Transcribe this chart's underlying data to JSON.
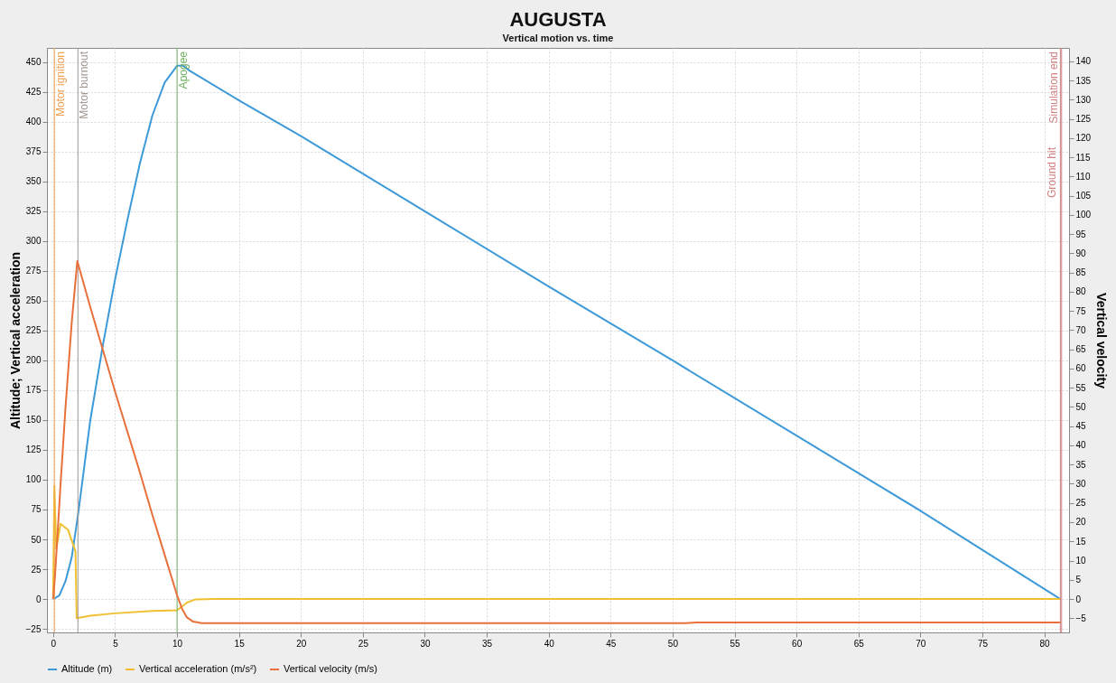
{
  "chart_data": {
    "type": "line",
    "title": "AUGUSTA",
    "subtitle": "Vertical motion vs. time",
    "ylabel": "Altitude; Vertical acceleration",
    "y2label": "Vertical velocity",
    "xlim": [
      -0.5,
      82
    ],
    "xticks": [
      0,
      5,
      10,
      15,
      20,
      25,
      30,
      35,
      40,
      45,
      50,
      55,
      60,
      65,
      70,
      75,
      80
    ],
    "ylim": [
      -28,
      462
    ],
    "yticks": [
      -25,
      0,
      25,
      50,
      75,
      100,
      125,
      150,
      175,
      200,
      225,
      250,
      275,
      300,
      325,
      350,
      375,
      400,
      425,
      450
    ],
    "y2lim": [
      -8.7,
      143.5
    ],
    "y2ticks": [
      -5,
      0,
      5,
      10,
      15,
      20,
      25,
      30,
      35,
      40,
      45,
      50,
      55,
      60,
      65,
      70,
      75,
      80,
      85,
      90,
      95,
      100,
      105,
      110,
      115,
      120,
      125,
      130,
      135,
      140
    ],
    "grid": true,
    "legend": "bottom",
    "series": [
      {
        "name": "Altitude (m)",
        "color": "#3d9ad8",
        "x": [
          0,
          0.5,
          1,
          1.5,
          2,
          2.5,
          3,
          4,
          5,
          6,
          7,
          8,
          9,
          10,
          10.5,
          11,
          15,
          20,
          30,
          40,
          50,
          60,
          70,
          81.3
        ],
        "values": [
          0,
          3,
          15,
          35,
          70,
          110,
          150,
          212,
          268,
          318,
          365,
          405,
          433,
          447,
          447,
          443,
          418,
          388,
          325,
          262,
          200,
          137,
          74,
          0
        ]
      },
      {
        "name": "Vertical acceleration (m/s²)",
        "color": "#f0c030",
        "x": [
          0,
          0.1,
          0.25,
          0.6,
          1.2,
          1.8,
          1.9,
          3,
          5,
          8,
          10,
          10.8,
          11.5,
          13,
          81.3
        ],
        "values": [
          0,
          95,
          42,
          63,
          58,
          40,
          -16,
          -14,
          -12,
          -10,
          -9.5,
          -3,
          -0.3,
          0,
          0
        ]
      },
      {
        "name": "Vertical velocity (m/s)",
        "color": "#e8703a",
        "axis": "y2",
        "x": [
          0,
          0.15,
          0.3,
          0.6,
          1.0,
          1.5,
          1.95,
          3,
          4,
          5,
          6,
          7,
          8,
          9,
          10,
          10.4,
          10.8,
          11.3,
          12,
          20,
          51,
          52,
          55,
          81.3
        ],
        "values": [
          0,
          6,
          14,
          30,
          50,
          72,
          88,
          76,
          65,
          54,
          43.5,
          33,
          22,
          11.5,
          1,
          -2.5,
          -4.8,
          -5.9,
          -6.3,
          -6.3,
          -6.3,
          -6.1,
          -6.1,
          -6.1
        ]
      }
    ],
    "ref_lines": [
      {
        "axis": "x",
        "value": 0.1,
        "label": "Motor ignition",
        "color": "#f0a050"
      },
      {
        "axis": "x",
        "value": 2.0,
        "label": "Motor burnout",
        "color": "#a09890"
      },
      {
        "axis": "x",
        "value": 10.0,
        "label": "Apogee",
        "color": "#70b060"
      },
      {
        "axis": "x",
        "value": 81.3,
        "label": "Ground hit",
        "color": "#d08080"
      },
      {
        "axis": "x",
        "value": 81.4,
        "label": "Simulation end",
        "color": "#d08080"
      }
    ]
  }
}
